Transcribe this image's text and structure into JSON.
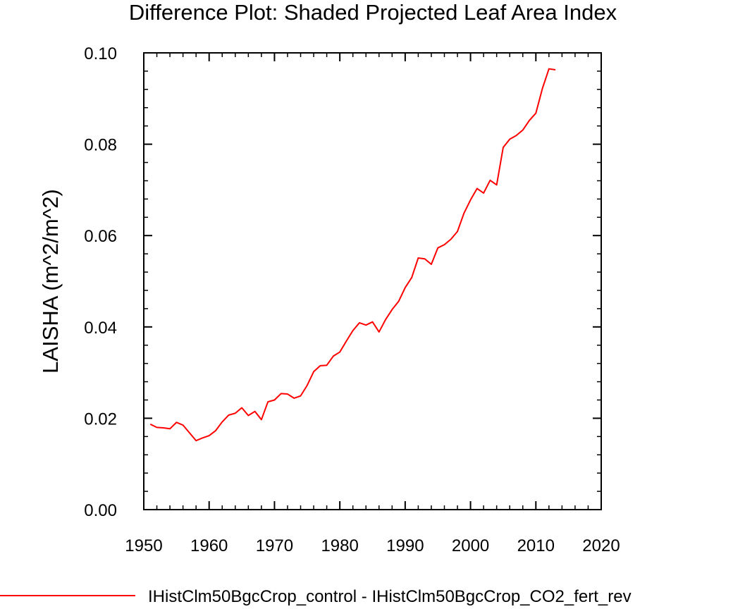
{
  "chart_data": {
    "type": "line",
    "title": "Difference Plot: Shaded Projected Leaf Area Index",
    "xlabel": "",
    "ylabel": "LAISHA  (m^2/m^2)",
    "xlim": [
      1950,
      2020
    ],
    "ylim": [
      0.0,
      0.1
    ],
    "x_ticks": [
      "1950",
      "1960",
      "1970",
      "1980",
      "1990",
      "2000",
      "2010",
      "2020"
    ],
    "y_ticks": [
      "0.00",
      "0.02",
      "0.04",
      "0.06",
      "0.08",
      "0.10"
    ],
    "grid": false,
    "legend_position": "bottom",
    "series": [
      {
        "name": "IHistClm50BgcCrop_control - IHistClm50BgcCrop_CO2_fert_rev",
        "color": "#ff0000",
        "x": [
          1951,
          1952,
          1953,
          1954,
          1955,
          1956,
          1957,
          1958,
          1959,
          1960,
          1961,
          1962,
          1963,
          1964,
          1965,
          1966,
          1967,
          1968,
          1969,
          1970,
          1971,
          1972,
          1973,
          1974,
          1975,
          1976,
          1977,
          1978,
          1979,
          1980,
          1981,
          1982,
          1983,
          1984,
          1985,
          1986,
          1987,
          1988,
          1989,
          1990,
          1991,
          1992,
          1993,
          1994,
          1995,
          1996,
          1997,
          1998,
          1999,
          2000,
          2001,
          2002,
          2003,
          2004,
          2005,
          2006,
          2007,
          2008,
          2009,
          2010,
          2011,
          2012,
          2013
        ],
        "values": [
          0.0187,
          0.018,
          0.0179,
          0.0177,
          0.0191,
          0.0185,
          0.0168,
          0.0151,
          0.0157,
          0.0162,
          0.0173,
          0.0192,
          0.0207,
          0.0211,
          0.0223,
          0.0206,
          0.0215,
          0.0197,
          0.0236,
          0.024,
          0.0254,
          0.0253,
          0.0244,
          0.0249,
          0.0272,
          0.0302,
          0.0315,
          0.0316,
          0.0336,
          0.0345,
          0.0369,
          0.0392,
          0.0409,
          0.0404,
          0.0411,
          0.0389,
          0.0416,
          0.0438,
          0.0456,
          0.0486,
          0.0508,
          0.0551,
          0.0549,
          0.0537,
          0.0573,
          0.058,
          0.0592,
          0.0609,
          0.0649,
          0.0678,
          0.0703,
          0.0693,
          0.0721,
          0.0711,
          0.0793,
          0.0811,
          0.0819,
          0.0831,
          0.0852,
          0.0868,
          0.0922,
          0.0965,
          0.0963
        ]
      }
    ]
  }
}
